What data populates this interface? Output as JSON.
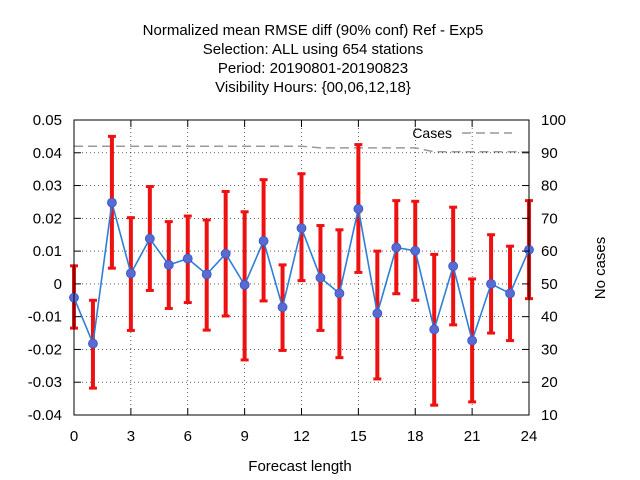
{
  "chart_data": {
    "type": "line",
    "title_lines": [
      "Normalized mean RMSE diff (90% conf) Ref - Exp5",
      "Selection: ALL using   654 stations",
      "Period: 20190801-20190823",
      "Visibility   Hours: {00,06,12,18}"
    ],
    "xlabel": "Forecast length",
    "ylabel_right": "No cases",
    "xlim": [
      0,
      24
    ],
    "ylim": [
      -0.04,
      0.05
    ],
    "y2lim": [
      10,
      100
    ],
    "x_ticks": [
      0,
      3,
      6,
      9,
      12,
      15,
      18,
      21,
      24
    ],
    "y_ticks": [
      "0.05",
      "0.04",
      "0.03",
      "0.02",
      "0.01",
      "0",
      "-0.01",
      "-0.02",
      "-0.03",
      "-0.04"
    ],
    "y_tick_values": [
      0.05,
      0.04,
      0.03,
      0.02,
      0.01,
      0,
      -0.01,
      -0.02,
      -0.03,
      -0.04
    ],
    "y2_ticks": [
      "100",
      "90",
      "80",
      "70",
      "60",
      "50",
      "40",
      "30",
      "20",
      "10"
    ],
    "y2_tick_values": [
      100,
      90,
      80,
      70,
      60,
      50,
      40,
      30,
      20,
      10
    ],
    "grid": true,
    "legend_position": "top-right",
    "series": [
      {
        "name": "",
        "color": "#2e7ed8",
        "marker_color": "#5a6ad0",
        "errorbar_color": "#ee1111",
        "x": [
          0,
          1,
          2,
          3,
          4,
          5,
          6,
          7,
          8,
          9,
          10,
          11,
          12,
          13,
          14,
          15,
          16,
          17,
          18,
          19,
          20,
          21,
          22,
          23,
          24
        ],
        "y": [
          -0.0042,
          -0.0182,
          0.0248,
          0.0032,
          0.0138,
          0.0058,
          0.0077,
          0.0029,
          0.0092,
          -0.0003,
          0.0131,
          -0.0071,
          0.017,
          0.0019,
          -0.0029,
          0.0229,
          -0.009,
          0.0111,
          0.0101,
          -0.0139,
          0.0054,
          -0.0173,
          0.0,
          -0.0029,
          0.0104
        ],
        "lower": [
          -0.0135,
          -0.0318,
          0.0048,
          -0.0142,
          -0.002,
          -0.0075,
          -0.0057,
          -0.0141,
          -0.0098,
          -0.0232,
          -0.0052,
          -0.0203,
          0.001,
          -0.0142,
          -0.0225,
          0.0035,
          -0.029,
          -0.003,
          -0.005,
          -0.037,
          -0.0125,
          -0.036,
          -0.015,
          -0.0173,
          -0.0045
        ],
        "upper": [
          0.0055,
          -0.005,
          0.045,
          0.0202,
          0.0297,
          0.019,
          0.0207,
          0.0195,
          0.0282,
          0.022,
          0.0318,
          0.0058,
          0.0336,
          0.0178,
          0.0165,
          0.0425,
          0.01,
          0.0254,
          0.0252,
          0.009,
          0.0234,
          0.0015,
          0.015,
          0.0115,
          0.0254
        ]
      },
      {
        "name": "Cases",
        "axis": "right",
        "color": "#999999",
        "dash": true,
        "x": [
          0,
          1,
          2,
          3,
          4,
          5,
          6,
          7,
          8,
          9,
          10,
          11,
          12,
          13,
          14,
          15,
          16,
          17,
          18,
          19,
          20,
          21,
          22,
          23,
          24
        ],
        "y": [
          92,
          92,
          92,
          92,
          92,
          92,
          92,
          92,
          92,
          92,
          92,
          92,
          92,
          91.5,
          91.5,
          91.5,
          91.5,
          91.5,
          91.5,
          90.3,
          90.3,
          90.3,
          90.3,
          90.3,
          90.3
        ]
      }
    ]
  }
}
